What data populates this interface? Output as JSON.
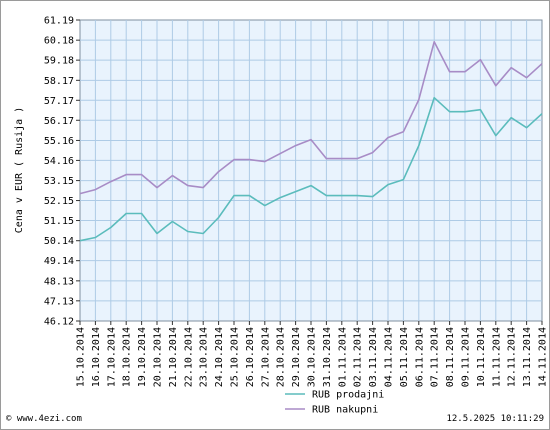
{
  "chart_data": {
    "type": "line",
    "ylabel": "Cena v EUR ( Rusija )",
    "y_ticks": [
      "46.12",
      "47.13",
      "48.13",
      "49.14",
      "50.14",
      "51.15",
      "52.15",
      "53.15",
      "54.16",
      "55.16",
      "56.17",
      "57.17",
      "58.17",
      "59.18",
      "60.18",
      "61.19"
    ],
    "ylim": [
      46.12,
      61.19
    ],
    "categories": [
      "15.10.2014",
      "16.10.2014",
      "17.10.2014",
      "18.10.2014",
      "19.10.2014",
      "20.10.2014",
      "21.10.2014",
      "22.10.2014",
      "23.10.2014",
      "24.10.2014",
      "25.10.2014",
      "26.10.2014",
      "27.10.2014",
      "28.10.2014",
      "29.10.2014",
      "30.10.2014",
      "31.10.2014",
      "01.11.2014",
      "02.11.2014",
      "03.11.2014",
      "04.11.2014",
      "05.11.2014",
      "06.11.2014",
      "07.11.2014",
      "08.11.2014",
      "09.11.2014",
      "10.11.2014",
      "11.11.2014",
      "12.11.2014",
      "13.11.2014",
      "14.11.2014"
    ],
    "series": [
      {
        "name": "RUB prodajni",
        "color": "#5bbcbc",
        "values": [
          50.14,
          50.3,
          50.8,
          51.5,
          51.5,
          50.5,
          51.1,
          50.6,
          50.5,
          51.3,
          52.4,
          52.4,
          51.9,
          52.3,
          52.6,
          52.9,
          52.4,
          52.4,
          52.4,
          52.35,
          52.95,
          53.2,
          54.9,
          57.3,
          56.6,
          56.6,
          56.7,
          55.4,
          56.3,
          55.8,
          56.5
        ]
      },
      {
        "name": "RUB nakupni",
        "color": "#a88cc6",
        "values": [
          52.5,
          52.7,
          53.1,
          53.45,
          53.45,
          52.8,
          53.4,
          52.9,
          52.8,
          53.6,
          54.2,
          54.2,
          54.1,
          54.5,
          54.9,
          55.2,
          54.25,
          54.25,
          54.25,
          54.55,
          55.3,
          55.6,
          57.2,
          60.1,
          58.6,
          58.6,
          59.2,
          57.9,
          58.8,
          58.3,
          59.0
        ]
      }
    ],
    "grid": true,
    "legend_position": "bottom-center"
  },
  "footer": {
    "left": "© www.4ezi.com",
    "right": "12.5.2025 10:11:29"
  }
}
